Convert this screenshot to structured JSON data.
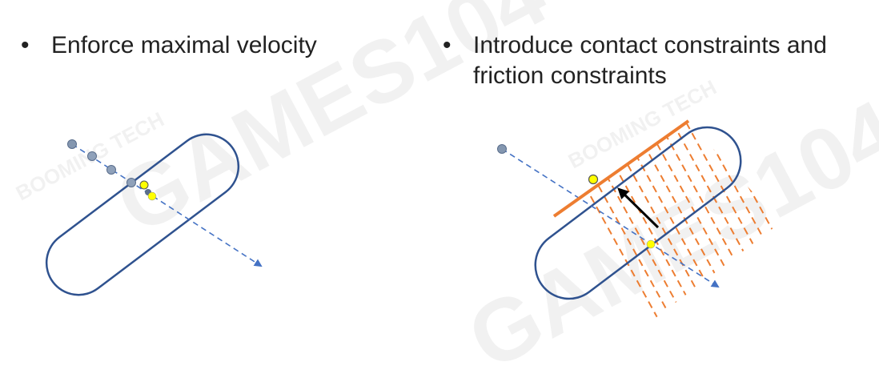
{
  "bullets": {
    "marker": "•",
    "left": "Enforce maximal velocity",
    "right": "Introduce contact constraints and friction constraints"
  },
  "watermarks": {
    "brand": "GAMES104",
    "studio": "BOOMING TECH"
  },
  "colors": {
    "capsule_outline": "#2F528F",
    "trajectory": "#4472C4",
    "ghost_dot": "#8497B0",
    "contact_dot": "#FFFF00",
    "constraint_line": "#ED7D31",
    "normal_arrow": "#000000"
  }
}
